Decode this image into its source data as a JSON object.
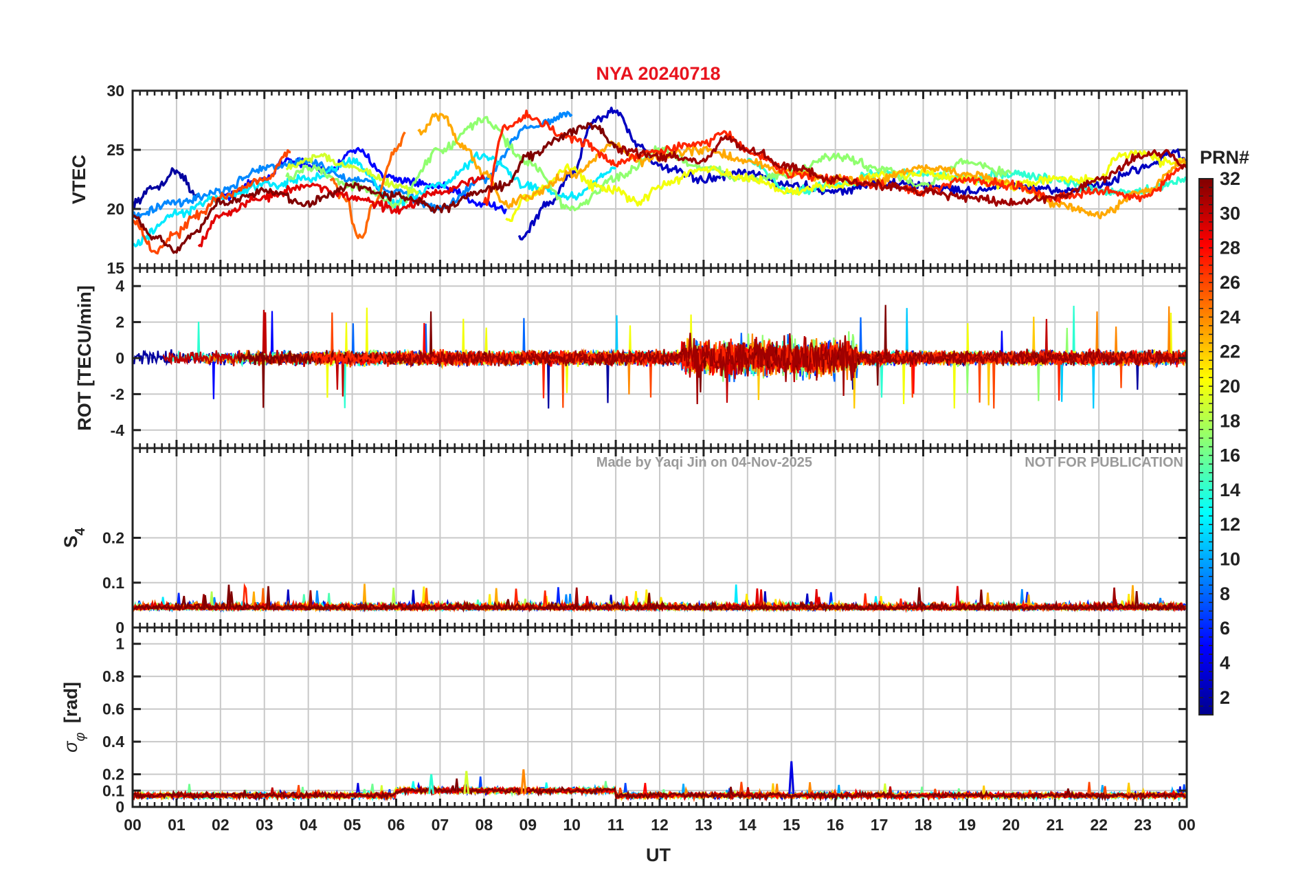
{
  "title": "NYA   20240718",
  "colors": {
    "title": "#e8141e",
    "axis": "#222222",
    "grid": "#c8c8c8",
    "watermark": "#9a9a9a"
  },
  "watermark": {
    "author": "Made by Yaqi Jin on 04-Nov-2025",
    "notice": "NOT FOR PUBLICATION"
  },
  "chart_data": [
    {
      "type": "line",
      "panel": "VTEC",
      "ylabel": "VTEC",
      "ylim": [
        15,
        30
      ],
      "yticks": [
        15,
        20,
        25,
        30
      ],
      "ytick_labels": [
        "15",
        "20",
        "25",
        "30"
      ],
      "xlim": [
        0,
        24
      ],
      "grid": true,
      "series": [
        {
          "prn": 2,
          "x": [
            0,
            0.5,
            1,
            1.5
          ],
          "y": [
            20.5,
            21.8,
            23.2,
            21.0
          ]
        },
        {
          "prn": 5,
          "x": [
            2,
            3,
            3.5,
            4.5,
            5,
            6,
            7,
            8,
            8.5
          ],
          "y": [
            21.0,
            22.5,
            24.2,
            23.2,
            25.0,
            22.5,
            21.8,
            20.5,
            20.0
          ]
        },
        {
          "prn": 3,
          "x": [
            8.8,
            9.5,
            10,
            10.5,
            11,
            11.5,
            12,
            13,
            14,
            15,
            16,
            17,
            18,
            19,
            20,
            21,
            22,
            23,
            23.7,
            24
          ],
          "y": [
            17.5,
            20.5,
            23.0,
            27.5,
            28.3,
            25.5,
            23.5,
            22.5,
            23.0,
            22.0,
            21.5,
            22.2,
            22.0,
            21.5,
            22.0,
            21.5,
            22.0,
            23.5,
            24.8,
            24.0
          ]
        },
        {
          "prn": 9,
          "x": [
            0,
            1,
            2,
            3,
            4,
            5,
            6,
            7,
            8,
            9,
            10
          ],
          "y": [
            19.5,
            20.5,
            21.5,
            23.5,
            24.0,
            22.5,
            21.5,
            20.0,
            22.5,
            27.0,
            28.0
          ]
        },
        {
          "prn": 12,
          "x": [
            0,
            1,
            2,
            3,
            4,
            5,
            6,
            7,
            8,
            9,
            10,
            11
          ],
          "y": [
            17.0,
            19.5,
            21.0,
            22.0,
            22.5,
            24.0,
            20.5,
            22.0,
            24.5,
            22.0,
            21.0,
            23.5
          ]
        },
        {
          "prn": 14,
          "x": [
            14,
            15,
            16,
            17,
            18,
            19,
            20,
            21,
            22,
            23,
            24
          ],
          "y": [
            24.0,
            21.5,
            22.0,
            23.0,
            23.0,
            22.5,
            23.0,
            22.5,
            21.5,
            21.5,
            22.5
          ]
        },
        {
          "prn": 17,
          "x": [
            3.5,
            4,
            5,
            6,
            7,
            8,
            9,
            10,
            11,
            12,
            13,
            14,
            15,
            16,
            17,
            18,
            19,
            20
          ],
          "y": [
            22.5,
            23.5,
            22.0,
            20.5,
            25.0,
            27.5,
            24.0,
            20.0,
            22.5,
            25.0,
            23.5,
            22.5,
            23.0,
            24.5,
            23.5,
            22.0,
            24.0,
            23.0
          ]
        },
        {
          "prn": 19,
          "x": [
            3.5,
            4.2,
            5,
            6,
            6.5
          ],
          "y": [
            23.5,
            24.5,
            23.5,
            22.0,
            21.5
          ]
        },
        {
          "prn": 20,
          "x": [
            8.5,
            9,
            10,
            10.5,
            11,
            11.5,
            12,
            13,
            14,
            15,
            16,
            17,
            18,
            19,
            20,
            21,
            22,
            22.5,
            23,
            23.5,
            24
          ],
          "y": [
            19.0,
            21.0,
            23.5,
            22.0,
            21.5,
            20.5,
            22.0,
            23.5,
            22.5,
            21.5,
            22.0,
            22.8,
            23.0,
            22.5,
            22.0,
            22.5,
            22.5,
            24.5,
            24.8,
            24.0,
            24.0
          ]
        },
        {
          "prn": 23,
          "x": [
            6.5,
            7,
            7.5,
            8,
            8.5,
            9,
            10,
            11,
            11.5,
            12,
            13,
            14,
            15,
            16,
            17,
            18,
            19,
            20,
            21,
            22,
            23,
            24
          ],
          "y": [
            26.5,
            28.0,
            25.5,
            23.0,
            20.5,
            21.0,
            23.0,
            25.5,
            24.0,
            24.5,
            25.0,
            24.0,
            23.0,
            22.5,
            22.5,
            23.5,
            23.0,
            22.0,
            20.5,
            19.5,
            21.5,
            24.0
          ]
        },
        {
          "prn": 25,
          "x": [
            4.5,
            4.8,
            5.2,
            5.5,
            6,
            6.2
          ],
          "y": [
            22.5,
            21.0,
            17.5,
            20.5,
            25.0,
            26.5
          ]
        },
        {
          "prn": 26,
          "x": [
            0,
            0.5,
            1,
            1.5,
            2,
            3,
            3.6
          ],
          "y": [
            19.0,
            16.5,
            18.0,
            19.5,
            21.0,
            22.5,
            24.8
          ]
        },
        {
          "prn": 27,
          "x": [
            8,
            8.5,
            9,
            10,
            11,
            12,
            13,
            13.5,
            14,
            15,
            16,
            17,
            18,
            19,
            20,
            21,
            22,
            23,
            24
          ],
          "y": [
            20.5,
            27.0,
            27.8,
            26.0,
            24.0,
            25.0,
            25.5,
            26.5,
            25.0,
            23.0,
            22.5,
            22.0,
            21.5,
            22.5,
            22.0,
            21.0,
            21.5,
            21.0,
            23.5
          ]
        },
        {
          "prn": 29,
          "x": [
            1.5,
            2,
            3,
            4,
            5,
            6,
            7,
            8
          ],
          "y": [
            17.0,
            19.5,
            21.0,
            22.0,
            21.0,
            20.0,
            21.5,
            22.5
          ]
        },
        {
          "prn": 31,
          "x": [
            11,
            12,
            13,
            13.5,
            14,
            15,
            16,
            17,
            18,
            19,
            20,
            21,
            22,
            23,
            23.5,
            24
          ],
          "y": [
            25.0,
            24.5,
            24.0,
            26.0,
            25.0,
            23.5,
            22.5,
            22.0,
            21.5,
            21.0,
            20.5,
            21.0,
            22.5,
            24.5,
            24.8,
            23.5
          ]
        },
        {
          "prn": 32,
          "x": [
            0,
            0.5,
            1,
            1.4,
            2,
            3,
            4,
            5,
            6,
            7,
            8,
            8.5,
            9,
            10,
            10.5,
            11
          ],
          "y": [
            19.5,
            17.5,
            16.5,
            18.0,
            20.5,
            21.5,
            20.5,
            22.0,
            21.0,
            20.0,
            21.5,
            22.0,
            24.5,
            26.5,
            27.0,
            25.5
          ]
        }
      ]
    },
    {
      "type": "line",
      "panel": "ROT",
      "ylabel": "ROT [TECU/min]",
      "ylim": [
        -5,
        5
      ],
      "yticks": [
        -4,
        -2,
        0,
        2,
        4
      ],
      "ytick_labels": [
        "-4",
        "-2",
        "0",
        "2",
        "4"
      ],
      "xlim": [
        0,
        24
      ],
      "grid": true,
      "noise_level": 0.5,
      "disturbed_intervals": [
        {
          "x": [
            12.5,
            14.5
          ],
          "amplitude": 3.2
        },
        {
          "x": [
            14.5,
            16.5
          ],
          "amplitude": 3.3
        }
      ]
    },
    {
      "type": "line",
      "panel": "S4",
      "ylabel": "S4",
      "ylim": [
        0,
        0.4
      ],
      "yticks": [
        0,
        0.1,
        0.2
      ],
      "ytick_labels": [
        "0",
        "0.1",
        "0.2"
      ],
      "xlim": [
        0,
        24
      ],
      "grid": true,
      "baseline": 0.04,
      "max_observed": 0.11
    },
    {
      "type": "line",
      "panel": "sigma_phi",
      "ylabel": "σφ [rad]",
      "ylim": [
        0,
        1.1
      ],
      "yticks": [
        0,
        0.1,
        0.2,
        0.4,
        0.6,
        0.8,
        1
      ],
      "ytick_labels": [
        "0",
        "0.1",
        "0.2",
        "0.4",
        "0.6",
        "0.8",
        "1"
      ],
      "xlim": [
        0,
        24
      ],
      "grid": true,
      "baseline": 0.07,
      "spikes": [
        {
          "x": 15.0,
          "y": 0.28
        },
        {
          "x": 6.8,
          "y": 0.2
        },
        {
          "x": 7.6,
          "y": 0.22
        },
        {
          "x": 8.9,
          "y": 0.23
        }
      ]
    }
  ],
  "xaxis": {
    "label": "UT",
    "ticks": [
      0,
      1,
      2,
      3,
      4,
      5,
      6,
      7,
      8,
      9,
      10,
      11,
      12,
      13,
      14,
      15,
      16,
      17,
      18,
      19,
      20,
      21,
      22,
      23,
      24
    ],
    "tick_labels": [
      "00",
      "01",
      "02",
      "03",
      "04",
      "05",
      "06",
      "07",
      "08",
      "09",
      "10",
      "11",
      "12",
      "13",
      "14",
      "15",
      "16",
      "17",
      "18",
      "19",
      "20",
      "21",
      "22",
      "23",
      "00"
    ]
  },
  "colorbar": {
    "title": "PRN#",
    "min": 1,
    "max": 32,
    "ticks": [
      2,
      4,
      6,
      8,
      10,
      12,
      14,
      16,
      18,
      20,
      22,
      24,
      26,
      28,
      30,
      32
    ],
    "tick_labels": [
      "2",
      "4",
      "6",
      "8",
      "10",
      "12",
      "14",
      "16",
      "18",
      "20",
      "22",
      "24",
      "26",
      "28",
      "30",
      "32"
    ]
  }
}
